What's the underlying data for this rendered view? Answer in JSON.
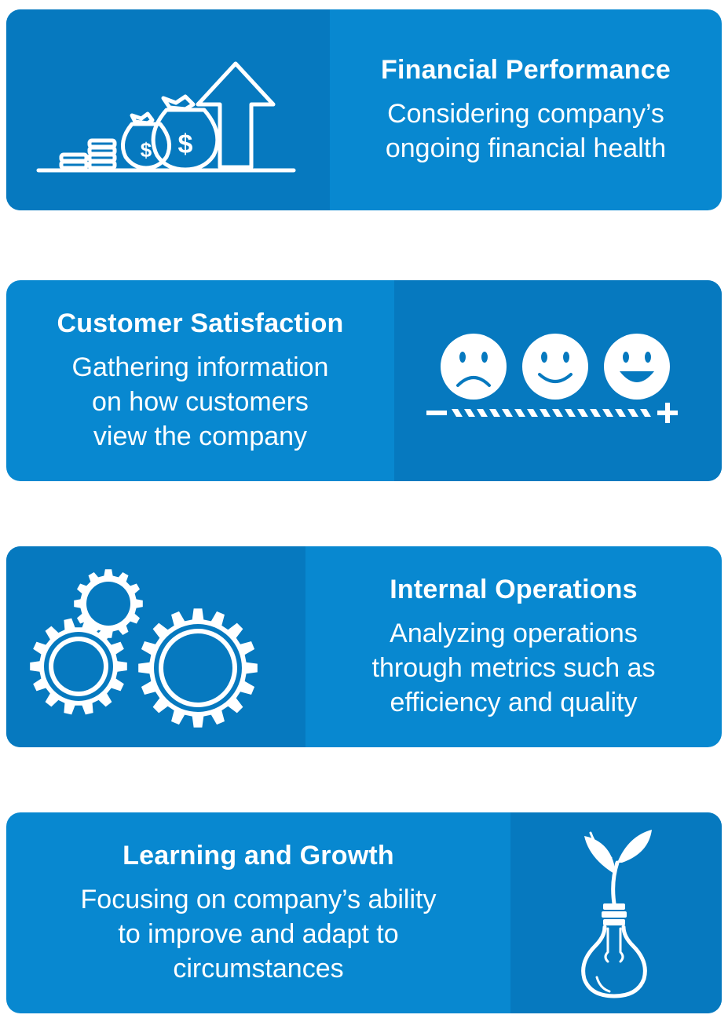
{
  "cards": [
    {
      "title": "Financial Performance",
      "lines": [
        "Considering company’s",
        "ongoing financial health"
      ],
      "icon": "money-growth-icon"
    },
    {
      "title": "Customer Satisfaction",
      "lines": [
        "Gathering information",
        "on how customers",
        "view the company"
      ],
      "icon": "satisfaction-scale-icon",
      "scale_min": "−",
      "scale_max": "+"
    },
    {
      "title": "Internal Operations",
      "lines": [
        "Analyzing operations",
        "through metrics such as",
        "efficiency and quality"
      ],
      "icon": "gears-icon"
    },
    {
      "title": "Learning and Growth",
      "lines": [
        "Focusing on company’s ability",
        "to improve and adapt to",
        "circumstances"
      ],
      "icon": "lightbulb-sprout-icon"
    }
  ],
  "colors": {
    "card": "#0888d0",
    "card_dark": "#0679bf",
    "text": "#ffffff"
  }
}
